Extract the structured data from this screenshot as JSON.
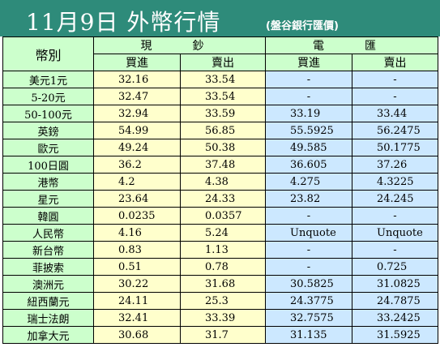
{
  "header": {
    "title": "11月9日 外幣行情",
    "subtitle": "(盤谷銀行匯價)"
  },
  "table": {
    "corner_label": "幣別",
    "groups": [
      "現　鈔",
      "電　匯"
    ],
    "sub_headers": [
      "買進",
      "賣出",
      "買進",
      "賣出"
    ],
    "rows": [
      {
        "currency": "美元1元",
        "cash_buy": "32.16",
        "cash_sell": "33.54",
        "tt_buy": "-",
        "tt_sell": "-"
      },
      {
        "currency": "5-20元",
        "cash_buy": "32.47",
        "cash_sell": "33.54",
        "tt_buy": "-",
        "tt_sell": "-"
      },
      {
        "currency": "50-100元",
        "cash_buy": "32.94",
        "cash_sell": "33.59",
        "tt_buy": "33.19",
        "tt_sell": "33.44"
      },
      {
        "currency": "英鎊",
        "cash_buy": "54.99",
        "cash_sell": "56.85",
        "tt_buy": "55.5925",
        "tt_sell": "56.2475"
      },
      {
        "currency": "歐元",
        "cash_buy": "49.24",
        "cash_sell": "50.38",
        "tt_buy": "49.585",
        "tt_sell": "50.1775"
      },
      {
        "currency": "100日圓",
        "cash_buy": "36.2",
        "cash_sell": "37.48",
        "tt_buy": "36.605",
        "tt_sell": "37.26"
      },
      {
        "currency": "港幣",
        "cash_buy": "4.2",
        "cash_sell": "4.38",
        "tt_buy": "4.275",
        "tt_sell": "4.3225"
      },
      {
        "currency": "星元",
        "cash_buy": "23.64",
        "cash_sell": "24.33",
        "tt_buy": "23.82",
        "tt_sell": "24.245"
      },
      {
        "currency": "韓圓",
        "cash_buy": "0.0235",
        "cash_sell": "0.0357",
        "tt_buy": "-",
        "tt_sell": "-"
      },
      {
        "currency": "人民幣",
        "cash_buy": "4.16",
        "cash_sell": "5.24",
        "tt_buy": "Unquote",
        "tt_sell": "Unquote"
      },
      {
        "currency": "新台幣",
        "cash_buy": "0.83",
        "cash_sell": "1.13",
        "tt_buy": "-",
        "tt_sell": "-"
      },
      {
        "currency": "菲披索",
        "cash_buy": "0.51",
        "cash_sell": "0.78",
        "tt_buy": "-",
        "tt_sell": "0.725"
      },
      {
        "currency": "澳洲元",
        "cash_buy": "30.22",
        "cash_sell": "31.68",
        "tt_buy": "30.5825",
        "tt_sell": "31.0825"
      },
      {
        "currency": "紐西蘭元",
        "cash_buy": "24.11",
        "cash_sell": "25.3",
        "tt_buy": "24.3775",
        "tt_sell": "24.7875"
      },
      {
        "currency": "瑞士法朗",
        "cash_buy": "32.41",
        "cash_sell": "33.39",
        "tt_buy": "32.7575",
        "tt_sell": "33.2425"
      },
      {
        "currency": "加拿大元",
        "cash_buy": "30.68",
        "cash_sell": "31.7",
        "tt_buy": "31.135",
        "tt_sell": "31.5925"
      }
    ]
  },
  "colors": {
    "header_bg": "#2e8b7a",
    "label_bg": "#ccffcc",
    "cash_bg": "#ffffcc",
    "tt_bg": "#cce8ff"
  }
}
